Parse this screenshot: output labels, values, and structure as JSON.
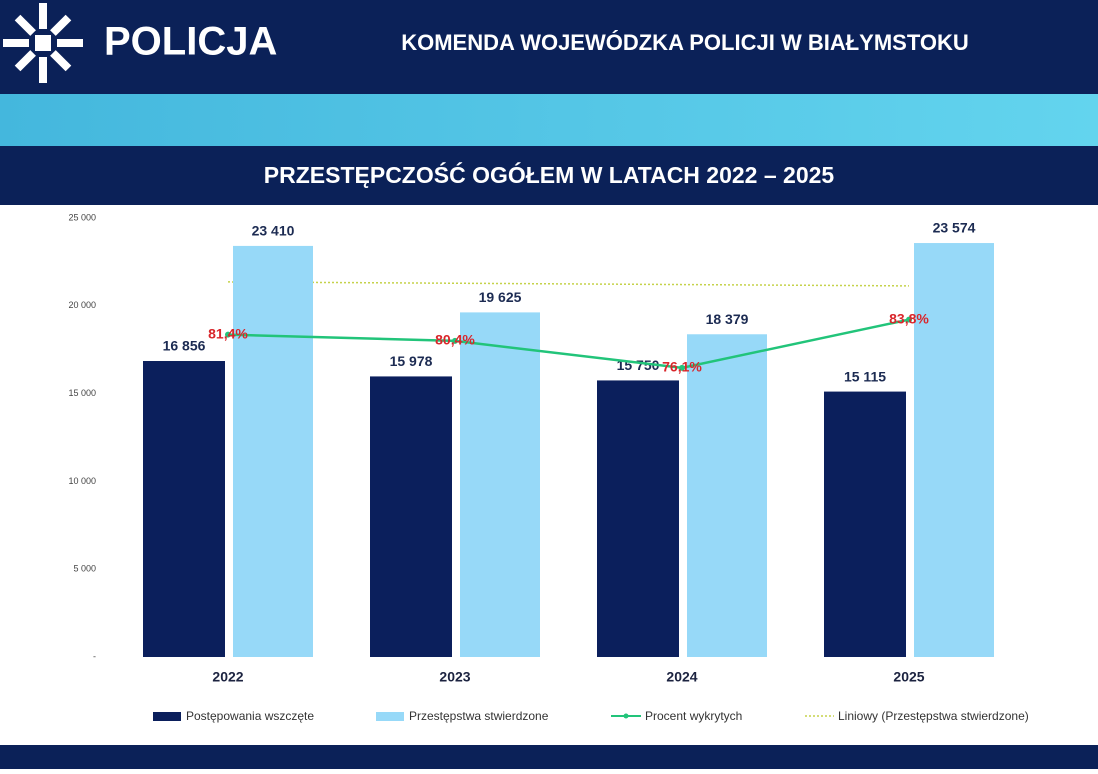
{
  "header": {
    "logo_text": "POLICJA",
    "title": "KOMENDA WOJEWÓDZKA POLICJI W BIAŁYMSTOKU"
  },
  "chart_data": {
    "type": "bar",
    "title": "PRZESTĘPCZOŚĆ OGÓŁEM W LATACH 2022 – 2025",
    "categories": [
      "2022",
      "2023",
      "2024",
      "2025"
    ],
    "series": [
      {
        "name": "Postępowania wszczęte",
        "type": "bar",
        "color": "#0b1f5c",
        "values": [
          16856,
          15978,
          15750,
          15115
        ],
        "value_labels": [
          "16 856",
          "15 978",
          "15 750",
          "15 115"
        ]
      },
      {
        "name": "Przestępstwa stwierdzone",
        "type": "bar",
        "color": "#97d9f8",
        "values": [
          23410,
          19625,
          18379,
          23574
        ],
        "value_labels": [
          "23 410",
          "19 625",
          "18 379",
          "23 574"
        ]
      },
      {
        "name": "Procent wykrytych",
        "type": "line",
        "axis": "y2",
        "color": "#22c47a",
        "label_color": "#d9262b",
        "values": [
          81.4,
          80.4,
          76.1,
          83.8
        ],
        "value_labels": [
          "81,4%",
          "80,4%",
          "76,1%",
          "83,8%"
        ]
      }
    ],
    "trendline": {
      "name": "Liniowy (Przestępstwa stwierdzone)",
      "color": "#c5d24a"
    },
    "ylim": [
      0,
      25000
    ],
    "yticks": [
      {
        "value": 0,
        "label": "-"
      },
      {
        "value": 5000,
        "label": "5 000"
      },
      {
        "value": 10000,
        "label": "10 000"
      },
      {
        "value": 15000,
        "label": "15 000"
      },
      {
        "value": 20000,
        "label": "20 000"
      },
      {
        "value": 25000,
        "label": "25 000"
      }
    ],
    "y2lim": [
      30,
      100
    ],
    "legend": "bottom"
  }
}
